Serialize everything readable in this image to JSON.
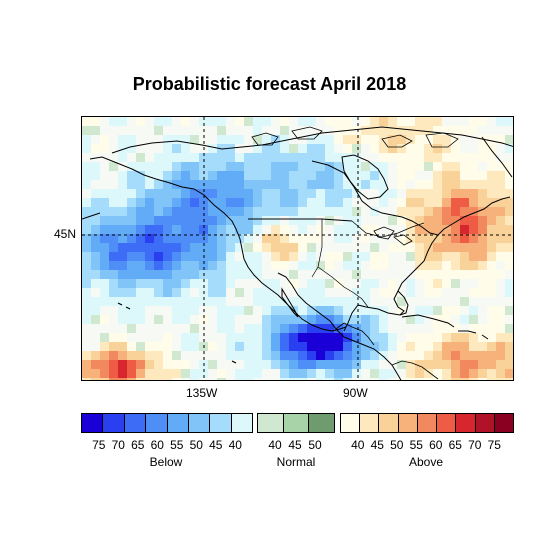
{
  "title": "Probabilistic forecast April 2018",
  "axis_labels": {
    "lat_45n": "45N",
    "lon_135w": "135W",
    "lon_90w": "90W"
  },
  "legend": {
    "below": {
      "label": "Below",
      "ticks": [
        "75",
        "70",
        "65",
        "60",
        "55",
        "50",
        "45",
        "40"
      ],
      "colors": [
        "#1a00d6",
        "#2a3ff0",
        "#3d6cf7",
        "#4f8ef7",
        "#62abf7",
        "#80c4f8",
        "#a6dcfb",
        "#ddf8fb"
      ]
    },
    "normal": {
      "label": "Normal",
      "ticks": [
        "40",
        "45",
        "50"
      ],
      "colors": [
        "#cfe8cf",
        "#a8d2a8",
        "#6f9c6f"
      ]
    },
    "above": {
      "label": "Above",
      "ticks": [
        "40",
        "45",
        "50",
        "55",
        "60",
        "65",
        "70",
        "75"
      ],
      "colors": [
        "#fffcea",
        "#fde9bd",
        "#f9d29a",
        "#f7b27c",
        "#f2895e",
        "#ee5c46",
        "#d8262e",
        "#b01227",
        "#8a0020"
      ]
    }
  }
}
